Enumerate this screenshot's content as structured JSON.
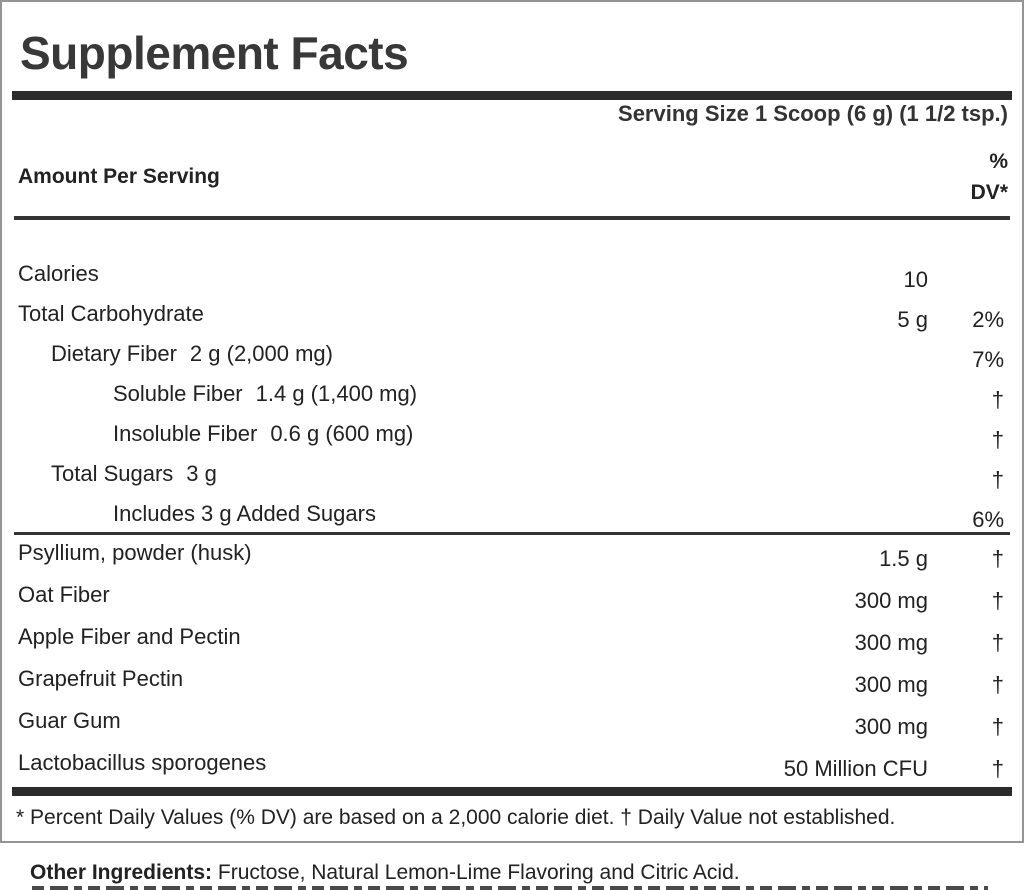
{
  "label": {
    "title": "Supplement Facts",
    "serving_size": "Serving Size 1 Scoop (6 g) (1 1/2 tsp.)",
    "columns": {
      "amount_header": "Amount Per Serving",
      "dv_header_line1": "%",
      "dv_header_line2": "DV*"
    },
    "nutrients": [
      {
        "indent": 0,
        "name": "Calories",
        "inline": "",
        "amount": "10",
        "dv": ""
      },
      {
        "indent": 0,
        "name": "Total Carbohydrate",
        "inline": "",
        "amount": "5 g",
        "dv": "2%"
      },
      {
        "indent": 1,
        "name": "Dietary Fiber",
        "inline": "2 g (2,000 mg)",
        "amount": "",
        "dv": "7%"
      },
      {
        "indent": 2,
        "name": "Soluble Fiber",
        "inline": "1.4 g (1,400 mg)",
        "amount": "",
        "dv": "†"
      },
      {
        "indent": 2,
        "name": "Insoluble Fiber",
        "inline": "0.6 g (600 mg)",
        "amount": "",
        "dv": "†"
      },
      {
        "indent": 1,
        "name": "Total Sugars",
        "inline": "3 g",
        "amount": "",
        "dv": "†"
      },
      {
        "indent": 2,
        "name": "Includes 3 g Added Sugars",
        "inline": "",
        "amount": "",
        "dv": "6%"
      }
    ],
    "ingredients": [
      {
        "name": "Psyllium, powder (husk)",
        "amount": "1.5 g",
        "dv": "†"
      },
      {
        "name": "Oat Fiber",
        "amount": "300 mg",
        "dv": "†"
      },
      {
        "name": "Apple Fiber and Pectin",
        "amount": "300 mg",
        "dv": "†"
      },
      {
        "name": "Grapefruit Pectin",
        "amount": "300 mg",
        "dv": "†"
      },
      {
        "name": "Guar Gum",
        "amount": "300 mg",
        "dv": "†"
      },
      {
        "name": "Lactobacillus sporogenes",
        "amount": "50 Million CFU",
        "dv": "†"
      }
    ],
    "footnote": "* Percent Daily Values (% DV) are based on a 2,000 calorie diet. † Daily Value not established."
  },
  "other_ingredients": {
    "label": "Other Ingredients:",
    "text": "Fructose, Natural Lemon-Lime Flavoring and Citric Acid."
  },
  "colors": {
    "text": "#2e2e2e",
    "bar": "#2b2b2b",
    "rule": "#333333",
    "border": "#949494"
  }
}
